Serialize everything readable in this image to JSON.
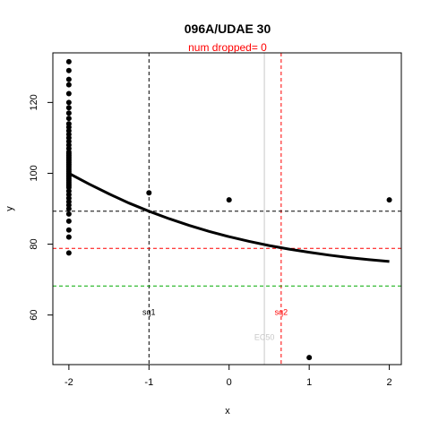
{
  "chart_data": {
    "type": "scatter",
    "title": "096A/UDAE 30",
    "subtitle": "num dropped= 0",
    "xlabel": "x",
    "ylabel": "y",
    "xlim": [
      -2.2,
      2.15
    ],
    "ylim": [
      46,
      134
    ],
    "x_ticks": [
      -2,
      -1,
      0,
      1,
      2
    ],
    "y_ticks": [
      60,
      80,
      100,
      120
    ],
    "grid": false,
    "colors": {
      "fit": "#000000",
      "black_ref": "#000000",
      "red_ref": "#ff0000",
      "green_ref": "#00aa00",
      "ec50_line": "#c8c8c8",
      "ec50_label": "#c8c8c8"
    },
    "points": {
      "x": [
        -2,
        -2,
        -2,
        -2,
        -2,
        -2,
        -2,
        -2,
        -2,
        -2,
        -2,
        -2,
        -2,
        -2,
        -2,
        -2,
        -2,
        -2,
        -2,
        -2,
        -2,
        -2,
        -2,
        -2,
        -2,
        -2,
        -2,
        -2,
        -2,
        -2,
        -2,
        -2,
        -2,
        -2,
        -2,
        -2,
        -2,
        -2,
        -2,
        -2,
        -2,
        -2,
        -2,
        -2,
        -2,
        -2,
        -2,
        -2,
        -2,
        -1,
        0,
        1,
        2
      ],
      "y": [
        131.5,
        129,
        126.5,
        125,
        122.5,
        120,
        118.5,
        117,
        115.5,
        114,
        113,
        112,
        111,
        110,
        109,
        108,
        107,
        106,
        105.5,
        105,
        104.5,
        104,
        103.5,
        103,
        102.5,
        102,
        101.5,
        101,
        100.5,
        100,
        99.5,
        99,
        98.5,
        98,
        97.5,
        97,
        96.5,
        96,
        95,
        94,
        93,
        92,
        91,
        90,
        88.5,
        86.5,
        84,
        82,
        77.5,
        94.5,
        92.5,
        48,
        92.5
      ]
    },
    "fit_curve": {
      "x": [
        -2,
        -1.75,
        -1.5,
        -1.25,
        -1,
        -0.75,
        -0.5,
        -0.25,
        0,
        0.25,
        0.5,
        0.75,
        1,
        1.25,
        1.5,
        1.75,
        2
      ],
      "y": [
        100,
        97,
        94.2,
        91.6,
        89.3,
        87.2,
        85.3,
        83.6,
        82.1,
        80.8,
        79.6,
        78.6,
        77.7,
        76.9,
        76.2,
        75.6,
        75.1
      ]
    },
    "reference_lines": {
      "horizontal": [
        {
          "y": 89.3,
          "color": "#000000"
        },
        {
          "y": 78.8,
          "color": "#ff0000"
        },
        {
          "y": 68.2,
          "color": "#00aa00"
        }
      ],
      "vertical": [
        {
          "x": -1,
          "color": "#000000",
          "label": "sq1"
        },
        {
          "x": 0.65,
          "color": "#ff0000",
          "label": "sq2"
        },
        {
          "x": 0.44,
          "color": "#c8c8c8",
          "label": "EC50"
        }
      ]
    }
  }
}
